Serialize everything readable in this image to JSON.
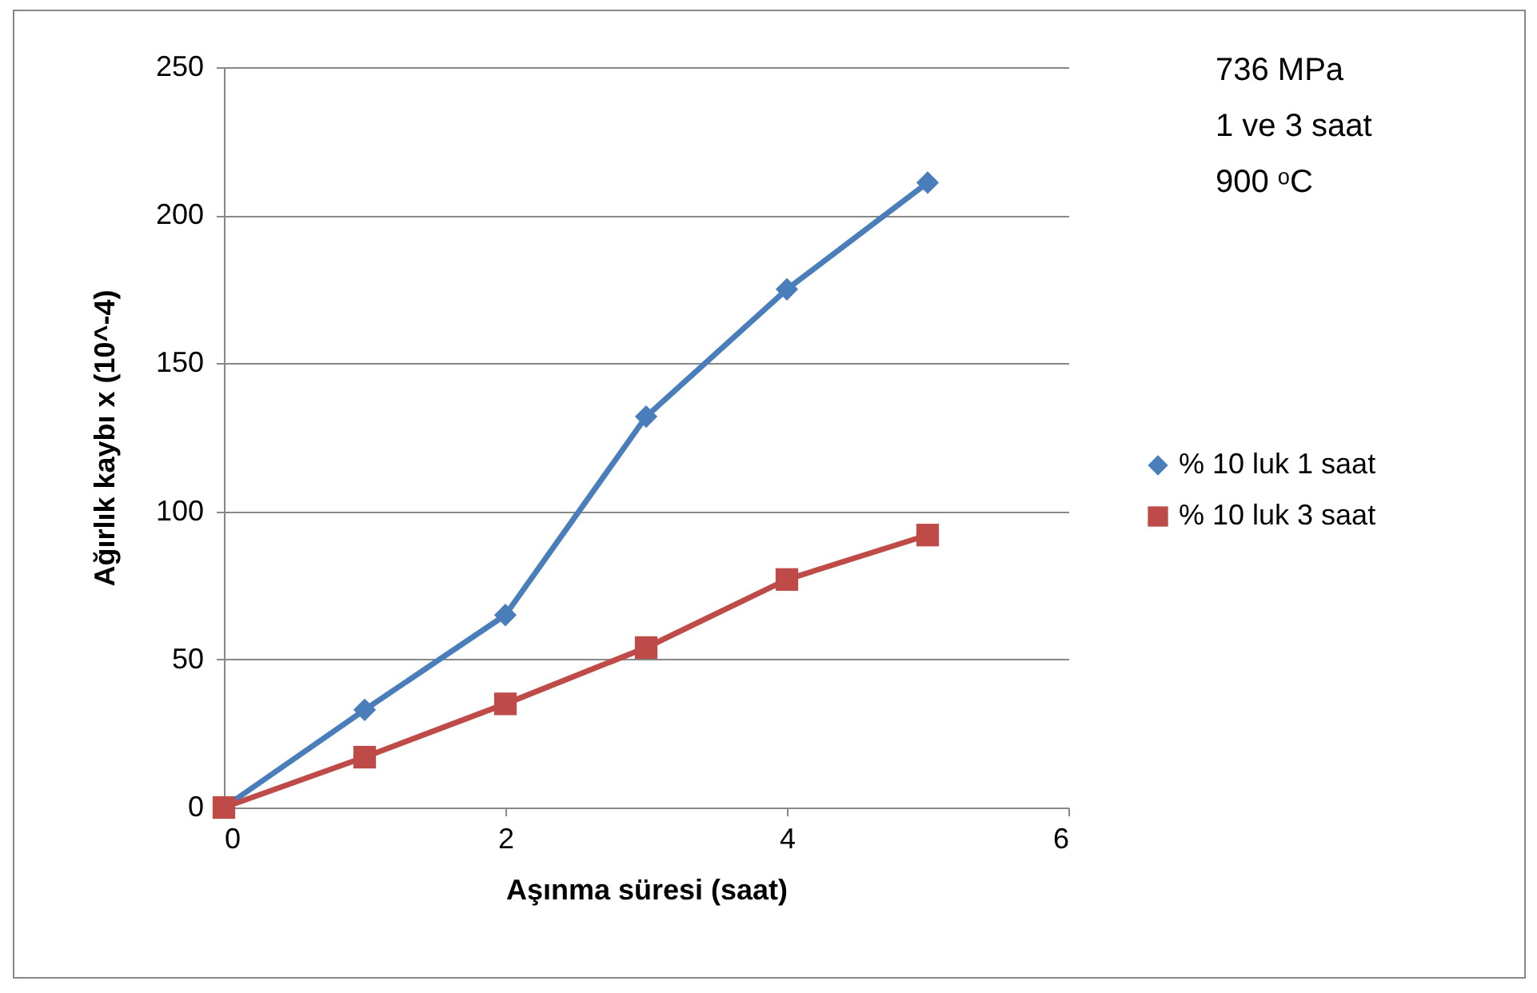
{
  "chart_data": {
    "type": "line",
    "xlabel": "Aşınma süresi (saat)",
    "ylabel": "Ağırlık kaybı x (10^-4)",
    "x": [
      0,
      1,
      2,
      3,
      4,
      5
    ],
    "series": [
      {
        "name": "% 10 luk 1 saat",
        "color": "#4a7ebb",
        "marker": "diamond",
        "values": [
          0,
          33,
          65,
          132,
          175,
          211
        ]
      },
      {
        "name": "% 10 luk 3 saat",
        "color": "#be4b48",
        "marker": "square",
        "values": [
          0,
          17,
          35,
          54,
          77,
          92
        ]
      }
    ],
    "xlim": [
      0,
      6
    ],
    "xticks": [
      0,
      2,
      4,
      6
    ],
    "ylim": [
      0,
      250
    ],
    "yticks": [
      0,
      50,
      100,
      150,
      200,
      250
    ],
    "grid": "y",
    "legend": "right",
    "line_style": "solid",
    "annotations": [
      "736 MPa",
      "1 ve 3 saat",
      "900 ᵒC"
    ]
  }
}
